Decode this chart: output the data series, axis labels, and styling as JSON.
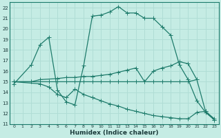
{
  "xlabel": "Humidex (Indice chaleur)",
  "bg_color": "#c5ece4",
  "line_color": "#1e7b6b",
  "grid_color": "#b0ddd5",
  "xlim": [
    -0.5,
    23.5
  ],
  "ylim": [
    11,
    22.5
  ],
  "xticks": [
    0,
    1,
    2,
    3,
    4,
    5,
    6,
    7,
    8,
    9,
    10,
    11,
    12,
    13,
    14,
    15,
    16,
    17,
    18,
    19,
    20,
    21,
    22,
    23
  ],
  "yticks": [
    11,
    12,
    13,
    14,
    15,
    16,
    17,
    18,
    19,
    20,
    21,
    22
  ],
  "lines": [
    {
      "x": [
        0,
        2,
        3,
        4,
        5,
        6,
        7,
        8,
        9,
        10,
        11,
        12,
        13,
        14,
        15,
        16,
        17,
        18,
        19,
        20,
        21,
        22,
        23
      ],
      "y": [
        14.8,
        16.6,
        18.5,
        19.2,
        14.2,
        13.1,
        12.8,
        16.5,
        21.2,
        21.3,
        21.6,
        22.1,
        21.5,
        21.5,
        21.0,
        21.0,
        20.2,
        19.4,
        16.6,
        15.2,
        13.2,
        12.1,
        11.4
      ]
    },
    {
      "x": [
        0,
        2,
        3,
        4,
        5,
        6,
        7,
        8,
        9,
        10,
        11,
        12,
        13,
        14,
        15,
        16,
        17,
        18,
        19,
        20,
        21
      ],
      "y": [
        15.0,
        15.0,
        15.0,
        15.0,
        15.0,
        15.0,
        15.0,
        15.0,
        15.0,
        15.0,
        15.0,
        15.0,
        15.0,
        15.0,
        15.0,
        15.0,
        15.0,
        15.0,
        15.0,
        15.0,
        15.2
      ]
    },
    {
      "x": [
        0,
        2,
        3,
        5,
        6,
        7,
        8,
        9,
        10,
        11,
        12,
        13,
        14,
        15,
        16,
        17,
        18,
        19,
        20,
        21,
        22,
        23
      ],
      "y": [
        15.0,
        15.0,
        15.2,
        15.3,
        15.4,
        15.4,
        15.5,
        15.5,
        15.6,
        15.7,
        15.9,
        16.1,
        16.3,
        15.0,
        16.0,
        16.3,
        16.5,
        16.9,
        16.7,
        15.2,
        12.2,
        11.5
      ]
    },
    {
      "x": [
        0,
        3,
        4,
        5,
        6,
        7,
        8,
        9,
        10,
        11,
        12,
        13,
        14,
        15,
        16,
        17,
        18,
        19,
        20,
        21,
        22,
        23
      ],
      "y": [
        15.0,
        14.8,
        14.5,
        13.8,
        13.5,
        14.3,
        13.8,
        13.5,
        13.2,
        12.9,
        12.7,
        12.4,
        12.2,
        12.0,
        11.8,
        11.7,
        11.6,
        11.5,
        11.5,
        12.1,
        12.2,
        11.4
      ]
    }
  ]
}
